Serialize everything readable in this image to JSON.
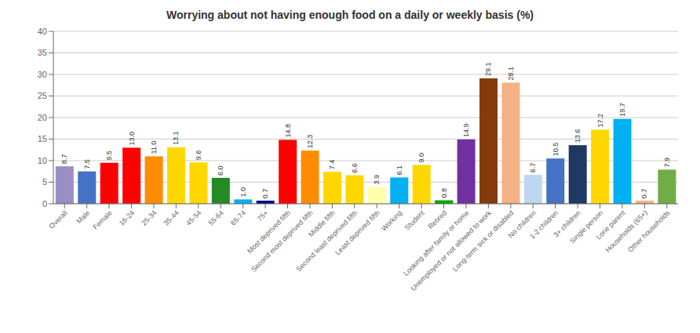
{
  "chart_data": {
    "type": "bar",
    "title": "Worrying about not having enough food on a daily or weekly basis (%)",
    "categories": [
      "Overall",
      "Male",
      "Female",
      "16-24",
      "25-34",
      "35-44",
      "45-54",
      "55-64",
      "65-74",
      "75+",
      "Most deprived fifth",
      "Second most deprived fifth",
      "Middle fifth",
      "Second least deprived fifth",
      "Least deprived fifth",
      "Working",
      "Student",
      "Retired",
      "Looking after family or home",
      "Unemployed or not allowed to work",
      "Long-term sick or disabled",
      "No children",
      "1-2 children",
      "3+ children",
      "Single person",
      "Lone parent",
      "Households (65+)",
      "Other households"
    ],
    "values": [
      8.7,
      7.5,
      9.5,
      13.0,
      11.0,
      13.1,
      9.6,
      6.0,
      1.0,
      0.7,
      14.8,
      12.3,
      7.4,
      6.6,
      3.9,
      6.1,
      9.0,
      0.8,
      14.9,
      29.1,
      28.1,
      6.7,
      10.5,
      13.6,
      17.2,
      19.7,
      0.7,
      7.9
    ],
    "value_labels": [
      "8.7",
      "7.5",
      "9.5",
      "13.0",
      "11.0",
      "13.1",
      "9.6",
      "6.0",
      "1.0",
      "0.7",
      "14.8",
      "12.3",
      "7.4",
      "6.6",
      "3.9",
      "6.1",
      "9.0",
      "0.8",
      "14.9",
      "29.1",
      "28.1",
      "6.7",
      "10.5",
      "13.6",
      "17.2",
      "19.7",
      "0.7",
      "7.9"
    ],
    "colors": [
      "#9B8EC4",
      "#4472C4",
      "#FF0000",
      "#FF0000",
      "#FF8C00",
      "#FFD700",
      "#FFD700",
      "#228B22",
      "#00B0F0",
      "#00008B",
      "#FF0000",
      "#FF8C00",
      "#FFD700",
      "#FFD700",
      "#FFFFAA",
      "#00B0F0",
      "#FFD700",
      "#00AA00",
      "#7030A0",
      "#843C0C",
      "#F4B183",
      "#BDD7EE",
      "#4472C4",
      "#1F3864",
      "#FFD700",
      "#00B0F0",
      "#F4B183",
      "#70AD47"
    ],
    "ylim": [
      0,
      40
    ],
    "yticks": [
      0,
      5,
      10,
      15,
      20,
      25,
      30,
      35,
      40
    ],
    "grid": true,
    "data_labels": true
  }
}
